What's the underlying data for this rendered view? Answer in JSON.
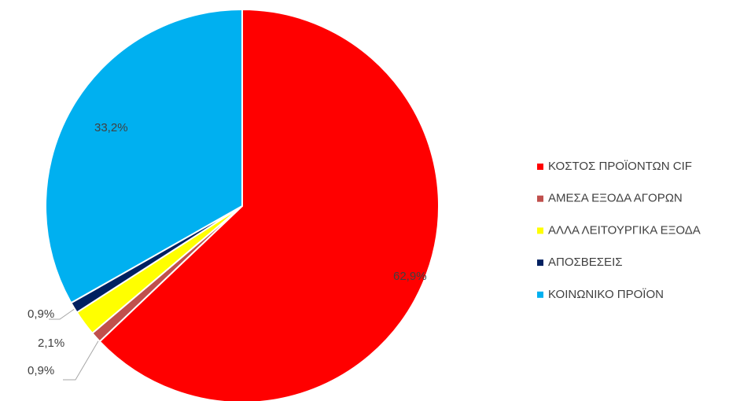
{
  "chart_data": {
    "type": "pie",
    "categories": [
      "ΚΟΣΤΟΣ ΠΡΟΪΟΝΤΩΝ CIF",
      "ΑΜΕΣΑ ΕΞΟΔΑ ΑΓΟΡΩΝ",
      "ΑΛΛΑ ΛΕΙΤΟΥΡΓΙΚΑ ΕΞΟΔΑ",
      "ΑΠΟΣΒΕΣΕΙΣ",
      "ΚΟΙΝΩΝΙΚΟ ΠΡΟΪΟΝ"
    ],
    "values": [
      62.9,
      0.9,
      2.1,
      0.9,
      33.2
    ],
    "value_labels": [
      "62,9%",
      "0,9%",
      "2,1%",
      "0,9%",
      "33,2%"
    ],
    "colors": [
      "#ff0000",
      "#c0504d",
      "#ffff00",
      "#002060",
      "#00b0f0"
    ],
    "legend": "right"
  }
}
